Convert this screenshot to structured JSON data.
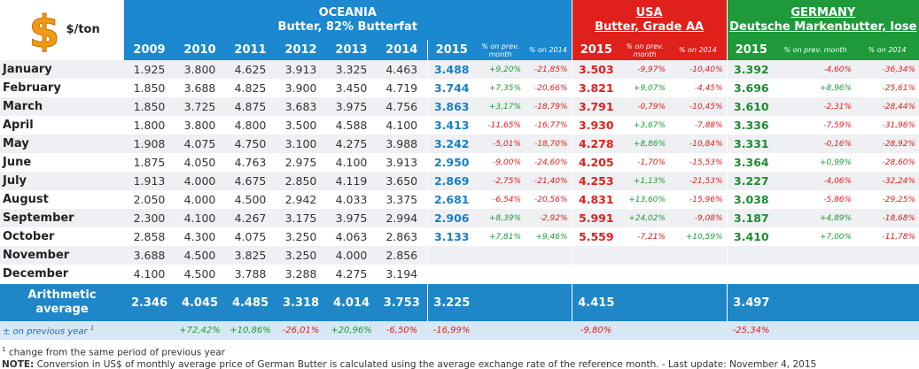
{
  "header": {
    "unit": "$/ton",
    "oceania": {
      "title": "OCEANIA",
      "subtitle": "Butter, 82% Butterfat"
    },
    "usa": {
      "title": "USA",
      "subtitle": "Butter, Grade AA"
    },
    "germany": {
      "title": "GERMANY",
      "subtitle": "Deutsche Markenbutter, lose"
    }
  },
  "columns": [
    "2009",
    "2010",
    "2011",
    "2012",
    "2013",
    "2014",
    "2015",
    "% on prev. month",
    "% on 2014",
    "2015",
    "% on prev. month",
    "% on 2014",
    "2015",
    "% on prev. month",
    "% on 2014"
  ],
  "rows": [
    {
      "month": "January",
      "cells": [
        "1.925",
        "3.800",
        "4.625",
        "3.913",
        "3.325",
        "4.463",
        "3.488",
        "+9,20%",
        "-21,85%",
        "3.503",
        "-9,97%",
        "-10,40%",
        "3.392",
        "-4,60%",
        "-36,34%"
      ]
    },
    {
      "month": "February",
      "cells": [
        "1.850",
        "3.688",
        "4.825",
        "3.900",
        "3.450",
        "4.719",
        "3.744",
        "+7,35%",
        "-20,66%",
        "3.821",
        "+9,07%",
        "-4,45%",
        "3.696",
        "+8,96%",
        "-25,61%"
      ]
    },
    {
      "month": "March",
      "cells": [
        "1.850",
        "3.725",
        "4.875",
        "3.683",
        "3.975",
        "4.756",
        "3.863",
        "+3,17%",
        "-18,79%",
        "3.791",
        "-0,79%",
        "-10,45%",
        "3.610",
        "-2,31%",
        "-28,44%"
      ]
    },
    {
      "month": "April",
      "cells": [
        "1.800",
        "3.800",
        "4.800",
        "3.500",
        "4.588",
        "4.100",
        "3.413",
        "-11,65%",
        "-16,77%",
        "3.930",
        "+3,67%",
        "-7,88%",
        "3.336",
        "-7,59%",
        "-31,96%"
      ]
    },
    {
      "month": "May",
      "cells": [
        "1.908",
        "4.075",
        "4.750",
        "3.100",
        "4.275",
        "3.988",
        "3.242",
        "-5,01%",
        "-18,70%",
        "4.278",
        "+8,86%",
        "-10,84%",
        "3.331",
        "-0,16%",
        "-28,92%"
      ]
    },
    {
      "month": "June",
      "cells": [
        "1.875",
        "4.050",
        "4.763",
        "2.975",
        "4.100",
        "3.913",
        "2.950",
        "-9,00%",
        "-24,60%",
        "4.205",
        "-1,70%",
        "-15,53%",
        "3.364",
        "+0,99%",
        "-28,60%"
      ]
    },
    {
      "month": "July",
      "cells": [
        "1.913",
        "4.000",
        "4.675",
        "2.850",
        "4.119",
        "3.650",
        "2.869",
        "-2,75%",
        "-21,40%",
        "4.253",
        "+1,13%",
        "-21,53%",
        "3.227",
        "-4,06%",
        "-32,24%"
      ]
    },
    {
      "month": "August",
      "cells": [
        "2.050",
        "4.000",
        "4.500",
        "2.942",
        "4.033",
        "3.375",
        "2.681",
        "-6,54%",
        "-20,56%",
        "4.831",
        "+13,60%",
        "-15,96%",
        "3.038",
        "-5,86%",
        "-29,25%"
      ]
    },
    {
      "month": "September",
      "cells": [
        "2.300",
        "4.100",
        "4.267",
        "3.175",
        "3.975",
        "2.994",
        "2.906",
        "+8,39%",
        "-2,92%",
        "5.991",
        "+24,02%",
        "-9,08%",
        "3.187",
        "+4,89%",
        "-18,68%"
      ]
    },
    {
      "month": "October",
      "cells": [
        "2.858",
        "4.300",
        "4.075",
        "3.250",
        "4.063",
        "2.863",
        "3.133",
        "+7,81%",
        "+9,46%",
        "5.559",
        "-7,21%",
        "+10,59%",
        "3.410",
        "+7,00%",
        "-11,78%"
      ]
    },
    {
      "month": "November",
      "cells": [
        "3.688",
        "4.500",
        "3.825",
        "3.250",
        "4.000",
        "2.856"
      ]
    },
    {
      "month": "December",
      "cells": [
        "4.100",
        "4.500",
        "3.788",
        "3.288",
        "4.275",
        "3.194"
      ]
    }
  ],
  "average": {
    "label": "Arithmetic average",
    "values": [
      "2.346",
      "4.045",
      "4.485",
      "3.318",
      "4.014",
      "3.753",
      "3.225",
      "4.415",
      "3.497"
    ]
  },
  "prev_year": {
    "label": "± on previous year",
    "marker": "1",
    "values": [
      "+72,42%",
      "+10,86%",
      "-26,01%",
      "+20,96%",
      "-6,50%",
      "-16,99%",
      "-9,80%",
      "-25,34%"
    ]
  },
  "footnotes": {
    "marker": "1",
    "text": "change from the same period of previous year",
    "note_label": "NOTE:",
    "note_text": "Conversion in US$ of monthly average price of German Butter is calculated using the average exchange rate of the reference month. - Last update: November 4, 2015"
  }
}
